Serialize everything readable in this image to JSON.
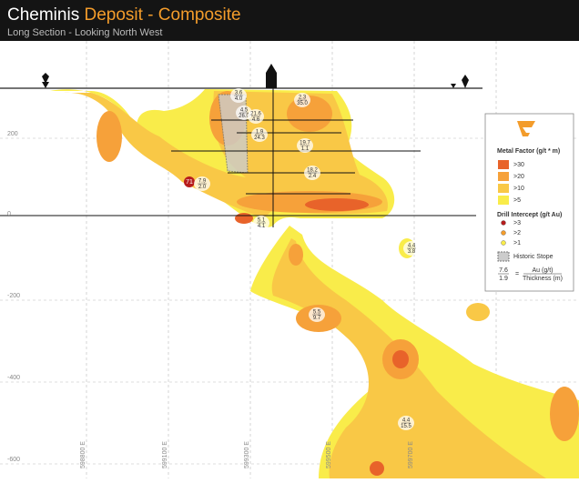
{
  "header": {
    "title_name": "Cheminis",
    "title_rest": "Deposit - Composite",
    "subtitle": "Long Section - Looking North West"
  },
  "elevations": [
    "200",
    "0",
    "-200",
    "-400",
    "-600"
  ],
  "eastings": [
    "598800 E",
    "599100 E",
    "599300 E",
    "599500 E",
    "599700 E"
  ],
  "legend": {
    "metal_factor_title": "Metal Factor (g/t * m)",
    "metal_factor": [
      ">30",
      ">20",
      ">10",
      ">5"
    ],
    "intercept_title": "Drill Intercept (g/t Au)",
    "intercept": [
      ">3",
      ">2",
      ">1"
    ],
    "stope": "Historic Stope",
    "key_top": "7.6",
    "key_bottom": "1.9",
    "key_equals": "=",
    "key_au": "Au (g/t)",
    "key_thick": "Thickness (m)"
  },
  "intercepts": [
    {
      "au": "3.6",
      "thickness": "4.0"
    },
    {
      "au": "4.5",
      "thickness": "26.0"
    },
    {
      "au": "21.6",
      "thickness": "4.6"
    },
    {
      "au": "2.3",
      "thickness": "35.0"
    },
    {
      "au": "1.9",
      "thickness": "24.3"
    },
    {
      "au": "19.7",
      "thickness": "1.1"
    },
    {
      "au": "18.2",
      "thickness": "2.4"
    },
    {
      "au": "7.9",
      "thickness": "2.0"
    },
    {
      "au": "5.1",
      "thickness": "4.1"
    },
    {
      "au": "4.4",
      "thickness": "3.8"
    },
    {
      "au": "5.5",
      "thickness": "9.7"
    },
    {
      "au": "4.4",
      "thickness": "15.5"
    }
  ],
  "highlight": "71"
}
